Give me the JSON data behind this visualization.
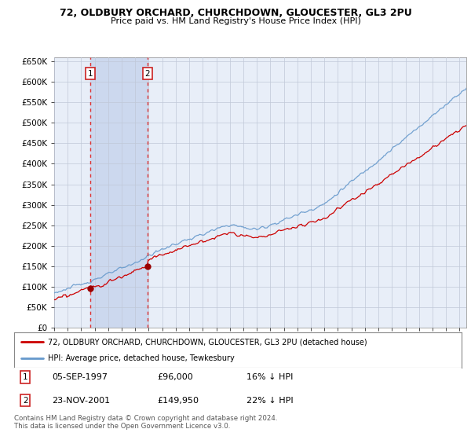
{
  "title": "72, OLDBURY ORCHARD, CHURCHDOWN, GLOUCESTER, GL3 2PU",
  "subtitle": "Price paid vs. HM Land Registry's House Price Index (HPI)",
  "legend_line1": "72, OLDBURY ORCHARD, CHURCHDOWN, GLOUCESTER, GL3 2PU (detached house)",
  "legend_line2": "HPI: Average price, detached house, Tewkesbury",
  "annotation1_date": "05-SEP-1997",
  "annotation1_price": "£96,000",
  "annotation1_hpi": "16% ↓ HPI",
  "annotation1_year": 1997.67,
  "annotation1_value": 96000,
  "annotation2_date": "23-NOV-2001",
  "annotation2_price": "£149,950",
  "annotation2_hpi": "22% ↓ HPI",
  "annotation2_year": 2001.89,
  "annotation2_value": 149950,
  "ylim": [
    0,
    660000
  ],
  "yticks": [
    0,
    50000,
    100000,
    150000,
    200000,
    250000,
    300000,
    350000,
    400000,
    450000,
    500000,
    550000,
    600000,
    650000
  ],
  "background_color": "#ffffff",
  "plot_bg_color": "#e8eef8",
  "grid_color": "#c0c8d8",
  "red_line_color": "#cc0000",
  "blue_line_color": "#6699cc",
  "vline_color": "#dd3333",
  "shade_color": "#ccd8ee",
  "marker_color": "#990000",
  "footnote": "Contains HM Land Registry data © Crown copyright and database right 2024.\nThis data is licensed under the Open Government Licence v3.0.",
  "xstart": 1995,
  "xend": 2025.5
}
